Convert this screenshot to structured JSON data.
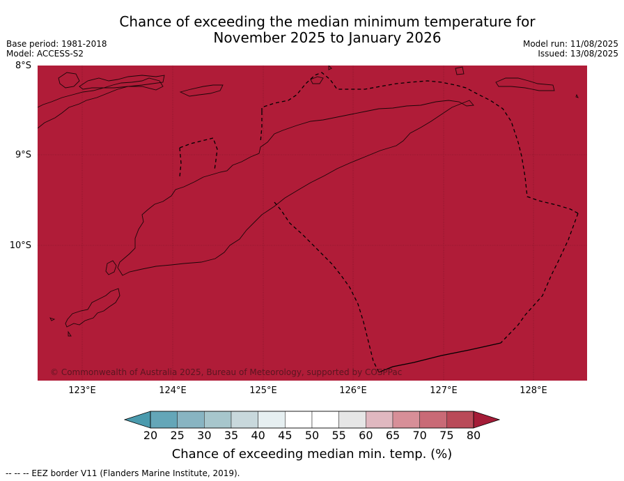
{
  "title_line1": "Chance of exceeding the median minimum temperature for",
  "title_line2": "November 2025 to January 2026",
  "base_period": "Base period: 1981-2018",
  "model": "Model: ACCESS-S2",
  "model_run": "Model run: 11/08/2025",
  "issued": "Issued: 13/08/2025",
  "lat_labels": [
    "8°S",
    "9°S",
    "10°S"
  ],
  "lon_labels": [
    "123°E",
    "124°E",
    "125°E",
    "126°E",
    "127°E",
    "128°E"
  ],
  "copyright": "© Commonwealth of Australia 2025, Bureau of Meteorology, supported by COSPPac",
  "colorbar": {
    "ticks": [
      "20",
      "25",
      "30",
      "35",
      "40",
      "45",
      "50",
      "55",
      "60",
      "65",
      "70",
      "75",
      "80"
    ],
    "label": "Chance of exceeding median min. temp. (%)",
    "under_color": "#4a9aad",
    "over_color": "#a41c37",
    "colors": [
      "#64a6b8",
      "#88b4c2",
      "#a7c6cc",
      "#c8d8dc",
      "#e6eff1",
      "#ffffff",
      "#ffffff",
      "#e6e6e6",
      "#e0b8c0",
      "#d78f98",
      "#c96a76",
      "#b94a58"
    ]
  },
  "map": {
    "fill_color": "#b01c38",
    "value_category": "80+"
  },
  "footer": "--  --  -- EEZ border V11 (Flanders Marine Institute, 2019)."
}
